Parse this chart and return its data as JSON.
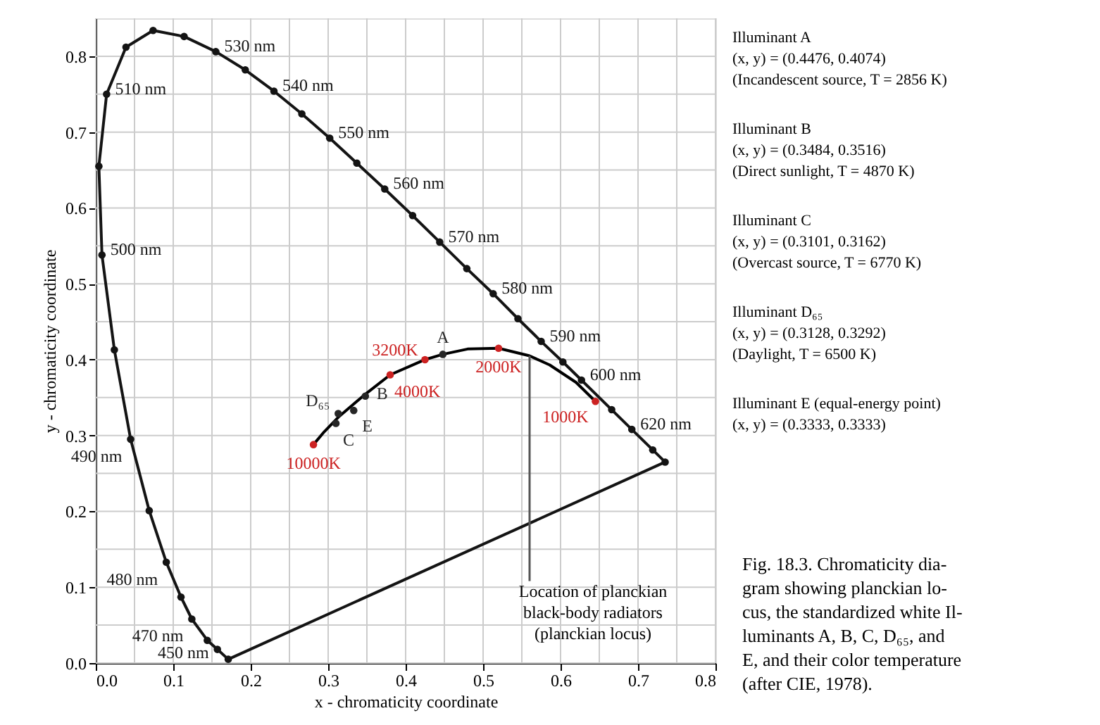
{
  "chart_data": {
    "type": "line",
    "xlabel": "x - chromaticity coordinate",
    "ylabel": "y - chromaticity coordinate",
    "xlim": [
      0,
      0.8
    ],
    "ylim": [
      0,
      0.85
    ],
    "xticks": [
      {
        "value": 0,
        "label": "0.0"
      },
      {
        "value": 0.05,
        "label": null
      },
      0.1,
      {
        "value": 0.15,
        "label": null
      },
      0.2,
      {
        "value": 0.25,
        "label": null
      },
      0.3,
      {
        "value": 0.35,
        "label": null
      },
      0.4,
      {
        "value": 0.45,
        "label": null
      },
      0.5,
      {
        "value": 0.55,
        "label": null
      },
      0.6,
      {
        "value": 0.65,
        "label": null
      },
      0.7,
      {
        "value": 0.75,
        "label": null
      },
      0.8
    ],
    "yticks": [
      {
        "value": 0,
        "label": "0.0"
      },
      {
        "value": 0.05,
        "label": null
      },
      0.1,
      {
        "value": 0.15,
        "label": null
      },
      0.2,
      {
        "value": 0.25,
        "label": null
      },
      0.3,
      {
        "value": 0.35,
        "label": null
      },
      0.4,
      {
        "value": 0.45,
        "label": null
      },
      0.5,
      {
        "value": 0.55,
        "label": null
      },
      0.6,
      {
        "value": 0.65,
        "label": null
      },
      0.7,
      {
        "value": 0.75,
        "label": null
      },
      0.8
    ],
    "grid": true,
    "series": [
      {
        "color": "#141414",
        "marker": "circle",
        "x": [
          0.171,
          0.157,
          0.144,
          0.124,
          0.11,
          0.091,
          0.069,
          0.045,
          0.024,
          0.008,
          0.004,
          0.014,
          0.039,
          0.074,
          0.114,
          0.155,
          0.193,
          0.23,
          0.266,
          0.302,
          0.337,
          0.373,
          0.409,
          0.444,
          0.479,
          0.513,
          0.545,
          0.575,
          0.603,
          0.627,
          0.666,
          0.692,
          0.719,
          0.735
        ],
        "values": [
          0.005,
          0.018,
          0.03,
          0.058,
          0.087,
          0.133,
          0.201,
          0.295,
          0.413,
          0.538,
          0.655,
          0.75,
          0.812,
          0.834,
          0.826,
          0.806,
          0.782,
          0.754,
          0.724,
          0.692,
          0.659,
          0.625,
          0.59,
          0.555,
          0.52,
          0.487,
          0.454,
          0.424,
          0.397,
          0.373,
          0.334,
          0.308,
          0.281,
          0.265
        ]
      },
      {
        "color": "#141414",
        "x": [
          0.735,
          0.171
        ],
        "values": [
          0.265,
          0.005
        ]
      },
      {
        "color": "#000000",
        "x": [
          0.281,
          0.295,
          0.313,
          0.345,
          0.38,
          0.425,
          0.448,
          0.48,
          0.52,
          0.56,
          0.586,
          0.62,
          0.645
        ],
        "values": [
          0.288,
          0.305,
          0.324,
          0.352,
          0.38,
          0.4,
          0.407,
          0.414,
          0.415,
          0.405,
          0.393,
          0.37,
          0.345
        ]
      },
      {
        "type": "scatter",
        "color": "#cc2222",
        "x": [
          0.281,
          0.38,
          0.425,
          0.52,
          0.645
        ],
        "values": [
          0.288,
          0.38,
          0.4,
          0.415,
          0.345
        ]
      },
      {
        "type": "scatter",
        "color": "#262626",
        "x": [
          0.448,
          0.348,
          0.31,
          0.313,
          0.333
        ],
        "values": [
          0.407,
          0.352,
          0.316,
          0.329,
          0.333
        ]
      }
    ],
    "annotations": [
      {
        "text": "530 nm",
        "x": 0.155,
        "y": 0.806
      },
      {
        "text": "540 nm",
        "x": 0.23,
        "y": 0.754
      },
      {
        "text": "550 nm",
        "x": 0.302,
        "y": 0.692
      },
      {
        "text": "560 nm",
        "x": 0.373,
        "y": 0.625
      },
      {
        "text": "570 nm",
        "x": 0.444,
        "y": 0.555
      },
      {
        "text": "580 nm",
        "x": 0.513,
        "y": 0.487
      },
      {
        "text": "590 nm",
        "x": 0.575,
        "y": 0.424
      },
      {
        "text": "600 nm",
        "x": 0.627,
        "y": 0.373
      },
      {
        "text": "620 nm",
        "x": 0.692,
        "y": 0.308
      },
      {
        "text": "510 nm",
        "x": 0.014,
        "y": 0.75
      },
      {
        "text": "500 nm",
        "x": 0.008,
        "y": 0.538
      },
      {
        "text": "490 nm",
        "x": 0.045,
        "y": 0.295
      },
      {
        "text": "480 nm",
        "x": 0.091,
        "y": 0.133
      },
      {
        "text": "470 nm",
        "x": 0.124,
        "y": 0.058
      },
      {
        "text": "450 nm",
        "x": 0.157,
        "y": 0.018
      },
      {
        "text": "10000K",
        "x": 0.281,
        "y": 0.288
      },
      {
        "text": "4000K",
        "x": 0.38,
        "y": 0.38
      },
      {
        "text": "3200K",
        "x": 0.425,
        "y": 0.4
      },
      {
        "text": "2000K",
        "x": 0.52,
        "y": 0.415
      },
      {
        "text": "1000K",
        "x": 0.645,
        "y": 0.345
      },
      {
        "text": "A",
        "x": 0.448,
        "y": 0.407
      },
      {
        "text": "B",
        "x": 0.348,
        "y": 0.352
      },
      {
        "text": "C",
        "x": 0.31,
        "y": 0.316
      },
      {
        "text": "D₆₅",
        "x": 0.313,
        "y": 0.329
      },
      {
        "text": "E",
        "x": 0.333,
        "y": 0.333
      },
      {
        "text": "Location of planckian\nblack-body radiators\n(planckian locus)",
        "x": 0.56,
        "y": 0.405
      },
      "Illuminant A\n(x, y)  =  (0.4476, 0.4074)\n(Incandescent source, T = 2856 K)",
      "Illuminant B\n(x, y)  =  (0.3484, 0.3516)\n(Direct sunlight, T = 4870 K)",
      "Illuminant C\n(x, y)  =  (0.3101, 0.3162)\n(Overcast source, T = 6770 K)",
      "Illuminant D₆₅\n(x, y)  =  (0.3128, 0.3292)\n(Daylight, T = 6500 K)",
      "Illuminant E (equal-energy point)\n(x, y)  =  (0.3333, 0.3333)",
      "Fig. 18.3. Chromaticity dia-\ngram showing planckian lo-\ncus, the standardized white Il-\nluminants A, B, C, D₆₅, and\nE, and their color temperature\n(after CIE, 1978)."
    ]
  }
}
